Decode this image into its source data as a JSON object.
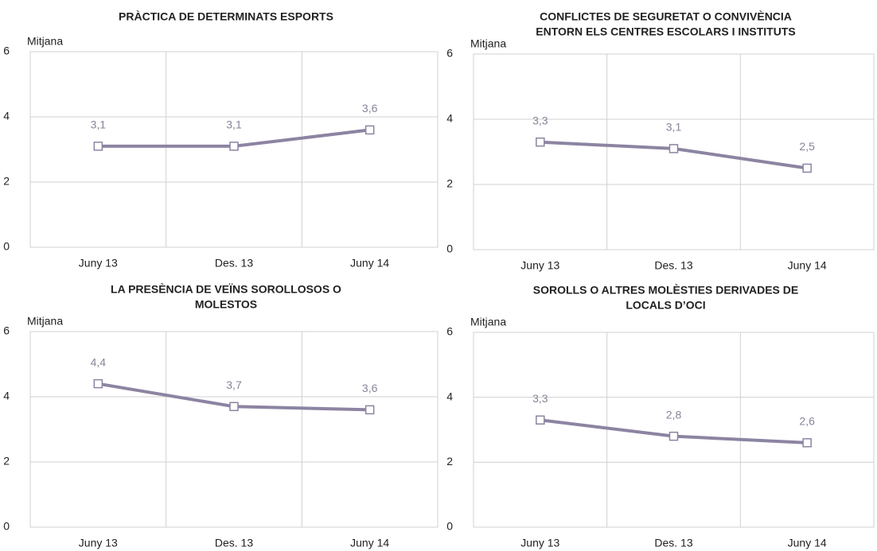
{
  "chart_data": [
    {
      "type": "line",
      "title": [
        "PRÀCTICA DE DETERMINATS ESPORTS"
      ],
      "y_label": "Mitjana",
      "categories": [
        "Juny 13",
        "Des. 13",
        "Juny 14"
      ],
      "values": [
        3.1,
        3.1,
        3.6
      ],
      "value_labels": [
        "3,1",
        "3,1",
        "3,6"
      ],
      "color": "#8c84a2",
      "ylim": [
        0,
        6
      ],
      "yticks": [
        0,
        2,
        4,
        6
      ],
      "grid": true
    },
    {
      "type": "line",
      "title": [
        "CONFLICTES DE SEGURETAT O CONVIVÈNCIA",
        "ENTORN ELS CENTRES ESCOLARS I INSTITUTS"
      ],
      "y_label": "Mitjana",
      "categories": [
        "Juny 13",
        "Des. 13",
        "Juny 14"
      ],
      "values": [
        3.3,
        3.1,
        2.5
      ],
      "value_labels": [
        "3,3",
        "3,1",
        "2,5"
      ],
      "color": "#8c84a2",
      "ylim": [
        0,
        6
      ],
      "yticks": [
        0,
        2,
        4,
        6
      ],
      "grid": true
    },
    {
      "type": "line",
      "title": [
        "LA PRESÈNCIA DE VEÏNS SOROLLOSOS O",
        "MOLESTOS"
      ],
      "y_label": "Mitjana",
      "categories": [
        "Juny 13",
        "Des. 13",
        "Juny 14"
      ],
      "values": [
        4.4,
        3.7,
        3.6
      ],
      "value_labels": [
        "4,4",
        "3,7",
        "3,6"
      ],
      "color": "#8c84a2",
      "ylim": [
        0,
        6
      ],
      "yticks": [
        0,
        2,
        4,
        6
      ],
      "grid": true
    },
    {
      "type": "line",
      "title": [
        "SOROLLS O ALTRES MOLÈSTIES DERIVADES DE",
        "LOCALS D’OCI"
      ],
      "y_label": "Mitjana",
      "categories": [
        "Juny 13",
        "Des. 13",
        "Juny 14"
      ],
      "values": [
        3.3,
        2.8,
        2.6
      ],
      "value_labels": [
        "3,3",
        "2,8",
        "2,6"
      ],
      "color": "#8c84a2",
      "ylim": [
        0,
        6
      ],
      "yticks": [
        0,
        2,
        4,
        6
      ],
      "grid": true
    }
  ]
}
